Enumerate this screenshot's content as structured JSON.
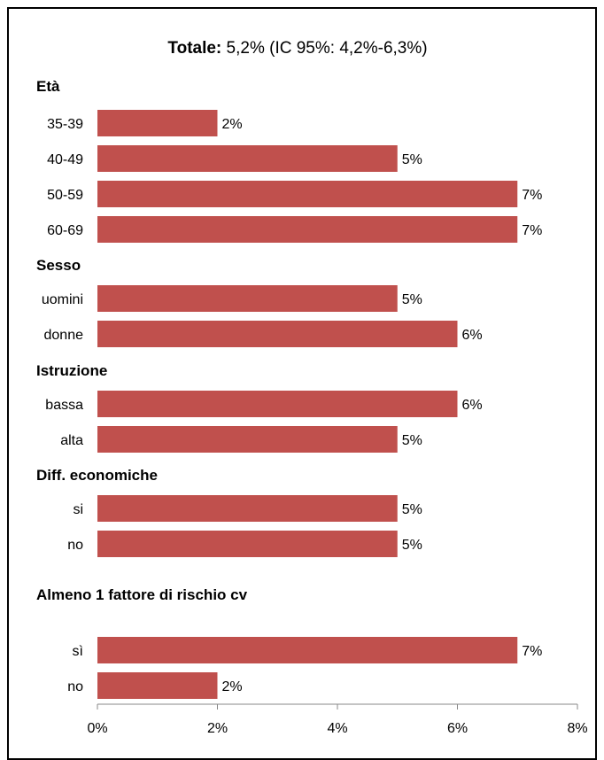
{
  "chart_data": {
    "type": "bar",
    "orientation": "horizontal",
    "title": {
      "bold": "Totale:",
      "rest": " 5,2% (IC 95%: 4,2%-6,3%)"
    },
    "groups": [
      {
        "label": "Età",
        "bars": [
          {
            "category": "35-39",
            "value": 2,
            "label": "2%"
          },
          {
            "category": "40-49",
            "value": 5,
            "label": "5%"
          },
          {
            "category": "50-59",
            "value": 7,
            "label": "7%"
          },
          {
            "category": "60-69",
            "value": 7,
            "label": "7%"
          }
        ]
      },
      {
        "label": "Sesso",
        "bars": [
          {
            "category": "uomini",
            "value": 5,
            "label": "5%"
          },
          {
            "category": "donne",
            "value": 6,
            "label": "6%"
          }
        ]
      },
      {
        "label": "Istruzione",
        "bars": [
          {
            "category": "bassa",
            "value": 6,
            "label": "6%"
          },
          {
            "category": "alta",
            "value": 5,
            "label": "5%"
          }
        ]
      },
      {
        "label": "Diff. economiche",
        "bars": [
          {
            "category": "si",
            "value": 5,
            "label": "5%"
          },
          {
            "category": "no",
            "value": 5,
            "label": "5%"
          }
        ]
      },
      {
        "label": "Almeno 1 fattore di rischio cv",
        "bars": [
          {
            "category": "sì",
            "value": 7,
            "label": "7%"
          },
          {
            "category": "no",
            "value": 2,
            "label": "2%"
          }
        ]
      }
    ],
    "xlim": [
      0,
      8
    ],
    "xticks": [
      {
        "value": 0,
        "label": "0%"
      },
      {
        "value": 2,
        "label": "2%"
      },
      {
        "value": 4,
        "label": "4%"
      },
      {
        "value": 6,
        "label": "6%"
      },
      {
        "value": 8,
        "label": "8%"
      }
    ],
    "grid": false,
    "legend": "none",
    "bar_color": "#c0504d"
  }
}
